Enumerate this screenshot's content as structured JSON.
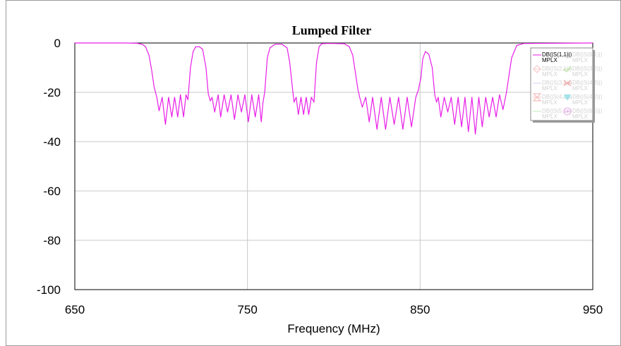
{
  "chart_data": {
    "type": "line",
    "title": "Lumped Filter",
    "xlabel": "Frequency (MHz)",
    "ylabel": "",
    "xlim": [
      650,
      950
    ],
    "ylim": [
      -100,
      0
    ],
    "x_ticks": [
      650,
      750,
      850,
      950
    ],
    "y_ticks": [
      0,
      -20,
      -40,
      -60,
      -80,
      -100
    ],
    "grid": true,
    "legend_position": "top-right",
    "series": [
      {
        "name": "DB(|S(1,1)|) MPLX",
        "color": "#e81ee8",
        "x": [
          650,
          680,
          686,
          689,
          691,
          693,
          694.5,
          696,
          697.5,
          698.8,
          700.6,
          702.5,
          704.3,
          706.2,
          707.8,
          709.6,
          711.2,
          713,
          714.4,
          715.5,
          717,
          718.5,
          720,
          722,
          724,
          726,
          727.3,
          728.5,
          729.5,
          731,
          733,
          734.5,
          736.5,
          738.5,
          740.5,
          742.5,
          744.5,
          746.5,
          748.5,
          750.5,
          752.5,
          754.5,
          756.5,
          758,
          759,
          760,
          761.5,
          763,
          766,
          770,
          773,
          774.5,
          776,
          777,
          778.2,
          779.5,
          781,
          782.5,
          784,
          785.5,
          787,
          788.5,
          790,
          791.5,
          793,
          796,
          800,
          806,
          809,
          811,
          812.5,
          814,
          815,
          816.5,
          818.5,
          820.5,
          822.5,
          825,
          827.5,
          830,
          832.5,
          835,
          837.5,
          840,
          842.5,
          845,
          847.5,
          849,
          850.5,
          851.5,
          853,
          855,
          857,
          858.5,
          859.5,
          860.5,
          862,
          864,
          866,
          868,
          870,
          872,
          874,
          876,
          878,
          880,
          882,
          884,
          886,
          888,
          890,
          892,
          894,
          896,
          898,
          900,
          903,
          906,
          910,
          950
        ],
        "values": [
          0,
          0,
          -0.1,
          -0.5,
          -1.5,
          -5,
          -11,
          -18,
          -22,
          -27.5,
          -22,
          -33,
          -22,
          -30,
          -22,
          -30,
          -21,
          -30,
          -21,
          -23,
          -10,
          -3.5,
          -1.5,
          -1.5,
          -2.5,
          -10,
          -20.5,
          -23.5,
          -22,
          -28,
          -21,
          -30,
          -21,
          -28,
          -21,
          -31,
          -21,
          -28,
          -21,
          -32,
          -21,
          -30,
          -21,
          -32,
          -24,
          -20,
          -6,
          -2,
          -0.5,
          -0.5,
          -2,
          -8,
          -18,
          -24,
          -22,
          -29,
          -22,
          -29,
          -22,
          -29,
          -22,
          -24,
          -8,
          -1.5,
          -0.3,
          -0.2,
          -0.2,
          -0.3,
          -1.5,
          -5,
          -12,
          -19,
          -22,
          -26,
          -22,
          -32,
          -22,
          -35,
          -22,
          -35,
          -22,
          -33,
          -22,
          -35,
          -22,
          -34,
          -22,
          -19,
          -14,
          -6.5,
          -3.5,
          -4.5,
          -10,
          -21,
          -24,
          -22,
          -30,
          -22,
          -28,
          -22,
          -33,
          -22,
          -34,
          -22,
          -36,
          -22,
          -37,
          -22,
          -34,
          -22,
          -30,
          -22,
          -30,
          -21,
          -27,
          -20,
          -6,
          -1,
          -0.2,
          0
        ]
      },
      {
        "name": "DB(|S(6,1)|) MPLX",
        "color": "#9a9a9a",
        "values": []
      },
      {
        "name": "DB(|S(2,1)|) MPLX",
        "color": "#f08a8a",
        "values": []
      },
      {
        "name": "DB(|S(3,2)|) MPLX",
        "color": "#7cd14a",
        "values": []
      },
      {
        "name": "DB(|S(3,1)|) MPLX",
        "color": "#9a9ae0",
        "values": []
      },
      {
        "name": "DB(|S(4,3)|) MPLX",
        "color": "#f05050",
        "values": []
      },
      {
        "name": "DB(|S(4,1)|) MPLX",
        "color": "#f07070",
        "values": []
      },
      {
        "name": "DB(|S(4,2)|) MPLX",
        "color": "#40d0e0",
        "values": []
      },
      {
        "name": "DB(|S(5,1)|) MPLX",
        "color": "#70d070",
        "values": []
      },
      {
        "name": "DB(|S(6,5)|) MPLX",
        "color": "#e070e0",
        "values": []
      }
    ]
  },
  "legend": {
    "entries": [
      {
        "line1": "DB(|S(1,1)|)",
        "line2": "MPLX",
        "color": "#e81ee8",
        "marker": "none",
        "active": true
      },
      {
        "line1": "DB(|S(6,1)|)",
        "line2": "MPLX",
        "color": "#9a9a9a",
        "marker": "plus",
        "active": false
      },
      {
        "line1": "DB(|S(2,1)|)",
        "line2": "MPLX",
        "color": "#f08a8a",
        "marker": "diamond",
        "active": false
      },
      {
        "line1": "DB(|S(3,2)|)",
        "line2": "MPLX",
        "color": "#7cd14a",
        "marker": "check",
        "active": false
      },
      {
        "line1": "DB(|S(3,1)|)",
        "line2": "MPLX",
        "color": "#9a9ae0",
        "marker": "none",
        "active": false
      },
      {
        "line1": "DB(|S(4,3)|)",
        "line2": "MPLX",
        "color": "#f05050",
        "marker": "tie",
        "active": false
      },
      {
        "line1": "DB(|S(4,1)|)",
        "line2": "MPLX",
        "color": "#f07070",
        "marker": "hourglass",
        "active": false
      },
      {
        "line1": "DB(|S(4,2)|)",
        "line2": "MPLX",
        "color": "#40d0e0",
        "marker": "triangle-down",
        "active": false
      },
      {
        "line1": "DB(|S(5,1)|)",
        "line2": "MPLX",
        "color": "#70d070",
        "marker": "none",
        "active": false
      },
      {
        "line1": "DB(|S(6,5)|)",
        "line2": "MPLX",
        "color": "#e070e0",
        "marker": "target",
        "active": false
      }
    ]
  }
}
